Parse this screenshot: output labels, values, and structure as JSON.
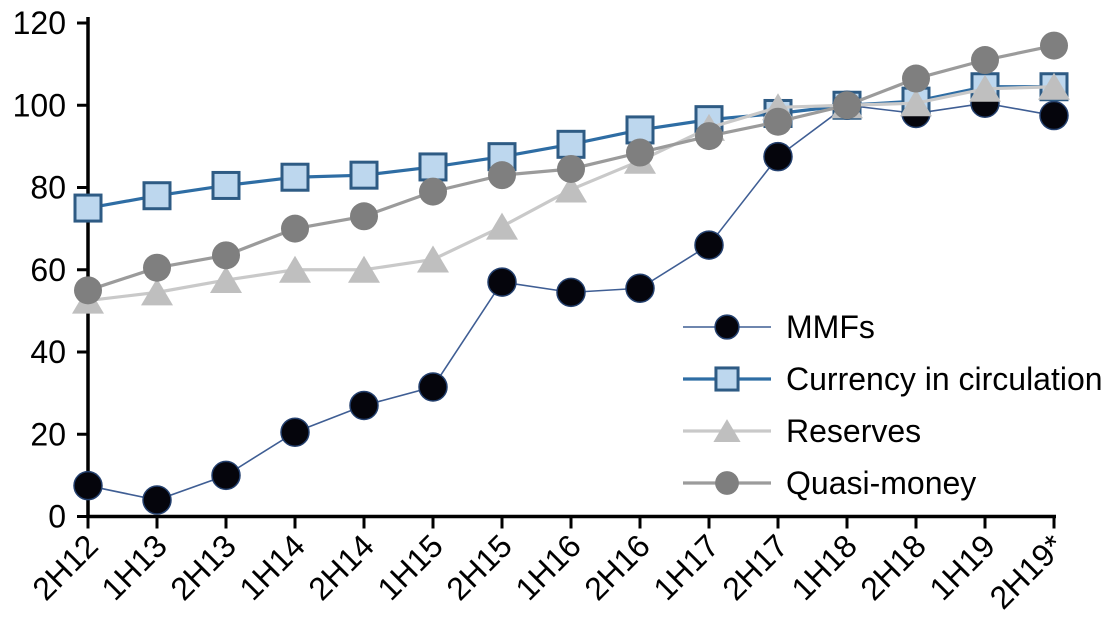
{
  "chart_data": {
    "type": "line",
    "title": "",
    "xlabel": "",
    "ylabel": "",
    "ylim": [
      0,
      120
    ],
    "ytick_step": 20,
    "yticks": [
      0,
      20,
      40,
      60,
      80,
      100,
      120
    ],
    "grid": false,
    "legend_position": "inside-right-middle",
    "x_tick_label_rotation_deg": -45,
    "categories": [
      "2H12",
      "1H13",
      "2H13",
      "1H14",
      "2H14",
      "1H15",
      "2H15",
      "1H16",
      "2H16",
      "1H17",
      "2H17",
      "1H18",
      "2H18",
      "1H19",
      "2H19*"
    ],
    "series": [
      {
        "name": "MMFs",
        "marker": "circle",
        "marker_fill": "#05050c",
        "marker_stroke": "#24406e",
        "line_color": "#3f5e94",
        "line_width": 1.6,
        "values": [
          7.5,
          4,
          10,
          20.5,
          27,
          31.5,
          57,
          54.5,
          55.5,
          66,
          87.5,
          100,
          98,
          100.5,
          97.5
        ]
      },
      {
        "name": "Currency in circulation",
        "marker": "square",
        "marker_fill": "#bdd7ee",
        "marker_stroke": "#2e5b84",
        "line_color": "#2e6da4",
        "line_width": 3.2,
        "values": [
          75,
          78,
          80.5,
          82.5,
          83,
          85,
          87.5,
          90.5,
          94,
          96.5,
          98,
          100,
          101,
          104.5,
          104.5
        ]
      },
      {
        "name": "Reserves",
        "marker": "triangle",
        "marker_fill": "#bfbfbf",
        "marker_stroke": "none",
        "line_color": "#c9c9c9",
        "line_width": 3.2,
        "values": [
          52.5,
          54.5,
          57.5,
          60,
          60,
          62.5,
          70.5,
          79.5,
          86.5,
          94.5,
          99.5,
          100,
          100.5,
          104,
          104.5
        ]
      },
      {
        "name": "Quasi-money",
        "marker": "circle",
        "marker_fill": "#7f7f7f",
        "marker_stroke": "none",
        "line_color": "#9b9b9b",
        "line_width": 3.2,
        "values": [
          55,
          60.5,
          63.5,
          70,
          73,
          79,
          83,
          84.5,
          88.5,
          92.5,
          96,
          100,
          106.5,
          111,
          114.5
        ]
      }
    ],
    "axis_color": "#000000"
  }
}
